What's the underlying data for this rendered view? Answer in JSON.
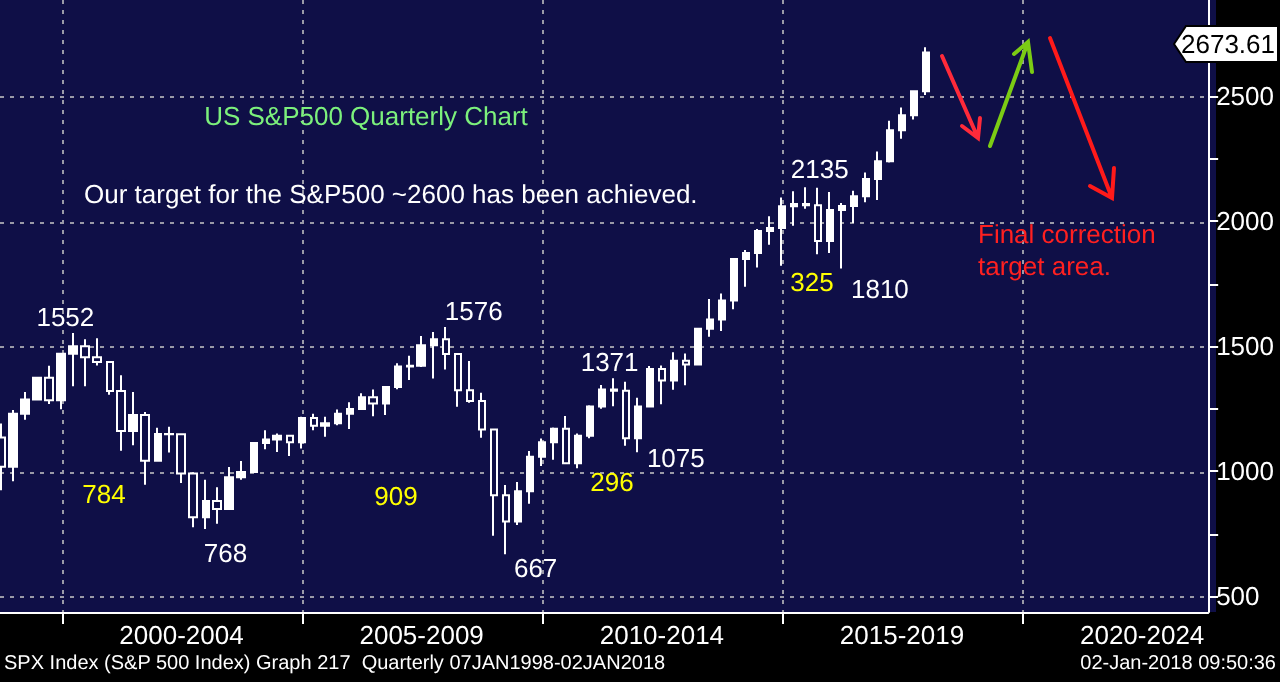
{
  "chart_data": {
    "type": "candlestick",
    "color": "#ffffff",
    "grid": true,
    "x": [
      "1998-09-30",
      "1998-12-31",
      "1999-03-31",
      "1999-06-30",
      "1999-09-30",
      "1999-12-31",
      "2000-03-31",
      "2000-06-30",
      "2000-09-30",
      "2000-12-31",
      "2001-03-31",
      "2001-06-30",
      "2001-09-30",
      "2001-12-31",
      "2002-03-31",
      "2002-06-30",
      "2002-09-30",
      "2002-12-31",
      "2003-03-31",
      "2003-06-30",
      "2003-09-30",
      "2003-12-31",
      "2004-03-31",
      "2004-06-30",
      "2004-09-30",
      "2004-12-31",
      "2005-03-31",
      "2005-06-30",
      "2005-09-30",
      "2005-12-31",
      "2006-03-31",
      "2006-06-30",
      "2006-09-30",
      "2006-12-31",
      "2007-03-31",
      "2007-06-30",
      "2007-09-30",
      "2007-12-31",
      "2008-03-31",
      "2008-06-30",
      "2008-09-30",
      "2008-12-31",
      "2009-03-31",
      "2009-06-30",
      "2009-09-30",
      "2009-12-31",
      "2010-03-31",
      "2010-06-30",
      "2010-09-30",
      "2010-12-31",
      "2011-03-31",
      "2011-06-30",
      "2011-09-30",
      "2011-12-31",
      "2012-03-31",
      "2012-06-30",
      "2012-09-30",
      "2012-12-31",
      "2013-03-31",
      "2013-06-30",
      "2013-09-30",
      "2013-12-31",
      "2014-03-31",
      "2014-06-30",
      "2014-09-30",
      "2014-12-31",
      "2015-03-31",
      "2015-06-30",
      "2015-09-30",
      "2015-12-31",
      "2016-03-31",
      "2016-06-30",
      "2016-09-30",
      "2016-12-31",
      "2017-03-31",
      "2017-06-30",
      "2017-09-30",
      "2017-12-31"
    ],
    "ohlc": [
      [
        1134,
        1190,
        923,
        1017
      ],
      [
        1017,
        1244,
        959,
        1229
      ],
      [
        1229,
        1316,
        1205,
        1286
      ],
      [
        1286,
        1373,
        1282,
        1373
      ],
      [
        1373,
        1421,
        1268,
        1283
      ],
      [
        1283,
        1473,
        1247,
        1469
      ],
      [
        1469,
        1552,
        1339,
        1499
      ],
      [
        1499,
        1527,
        1339,
        1455
      ],
      [
        1455,
        1531,
        1422,
        1436
      ],
      [
        1436,
        1437,
        1305,
        1320
      ],
      [
        1320,
        1383,
        1081,
        1160
      ],
      [
        1160,
        1316,
        1103,
        1224
      ],
      [
        1224,
        1236,
        945,
        1041
      ],
      [
        1041,
        1173,
        1041,
        1148
      ],
      [
        1148,
        1177,
        1074,
        1147
      ],
      [
        1147,
        1147,
        952,
        990
      ],
      [
        990,
        995,
        775,
        815
      ],
      [
        815,
        965,
        768,
        880
      ],
      [
        880,
        935,
        789,
        848
      ],
      [
        848,
        1016,
        847,
        975
      ],
      [
        975,
        1040,
        965,
        996
      ],
      [
        996,
        1112,
        996,
        1112
      ],
      [
        1112,
        1163,
        1087,
        1126
      ],
      [
        1126,
        1150,
        1076,
        1141
      ],
      [
        1141,
        1141,
        1060,
        1115
      ],
      [
        1115,
        1217,
        1090,
        1212
      ],
      [
        1212,
        1229,
        1163,
        1181
      ],
      [
        1181,
        1217,
        1137,
        1191
      ],
      [
        1191,
        1246,
        1183,
        1229
      ],
      [
        1229,
        1275,
        1168,
        1248
      ],
      [
        1248,
        1311,
        1245,
        1295
      ],
      [
        1295,
        1326,
        1219,
        1270
      ],
      [
        1270,
        1340,
        1224,
        1336
      ],
      [
        1336,
        1431,
        1327,
        1418
      ],
      [
        1418,
        1461,
        1364,
        1421
      ],
      [
        1421,
        1540,
        1416,
        1503
      ],
      [
        1503,
        1556,
        1370,
        1527
      ],
      [
        1527,
        1576,
        1406,
        1468
      ],
      [
        1468,
        1471,
        1257,
        1323
      ],
      [
        1323,
        1440,
        1273,
        1280
      ],
      [
        1280,
        1313,
        1133,
        1166
      ],
      [
        1166,
        1167,
        741,
        903
      ],
      [
        903,
        944,
        667,
        798
      ],
      [
        798,
        956,
        784,
        919
      ],
      [
        919,
        1080,
        869,
        1057
      ],
      [
        1057,
        1130,
        1020,
        1115
      ],
      [
        1115,
        1174,
        1045,
        1169
      ],
      [
        1169,
        1220,
        1029,
        1031
      ],
      [
        1031,
        1150,
        1011,
        1141
      ],
      [
        1141,
        1263,
        1131,
        1258
      ],
      [
        1258,
        1344,
        1249,
        1326
      ],
      [
        1326,
        1371,
        1259,
        1321
      ],
      [
        1321,
        1357,
        1101,
        1131
      ],
      [
        1131,
        1293,
        1075,
        1258
      ],
      [
        1258,
        1420,
        1258,
        1408
      ],
      [
        1408,
        1422,
        1267,
        1362
      ],
      [
        1362,
        1475,
        1325,
        1441
      ],
      [
        1441,
        1470,
        1343,
        1426
      ],
      [
        1426,
        1570,
        1426,
        1569
      ],
      [
        1569,
        1688,
        1537,
        1606
      ],
      [
        1606,
        1710,
        1560,
        1682
      ],
      [
        1682,
        1850,
        1647,
        1848
      ],
      [
        1848,
        1884,
        1737,
        1872
      ],
      [
        1872,
        1968,
        1814,
        1960
      ],
      [
        1960,
        2019,
        1905,
        1972
      ],
      [
        1972,
        2094,
        1821,
        2059
      ],
      [
        2059,
        2119,
        1981,
        2068
      ],
      [
        2068,
        2135,
        2049,
        2063
      ],
      [
        2063,
        2133,
        1867,
        1920
      ],
      [
        1920,
        2116,
        1872,
        2044
      ],
      [
        2044,
        2072,
        1810,
        2060
      ],
      [
        2060,
        2121,
        1992,
        2099
      ],
      [
        2099,
        2194,
        2075,
        2168
      ],
      [
        2168,
        2278,
        2084,
        2239
      ],
      [
        2239,
        2401,
        2234,
        2363
      ],
      [
        2363,
        2454,
        2329,
        2423
      ],
      [
        2423,
        2520,
        2406,
        2519
      ],
      [
        2519,
        2695,
        2504,
        2674
      ]
    ],
    "xlim": [
      "1998-09-20",
      "2023-11-15"
    ],
    "xticks": [
      {
        "value": "2000-01-01",
        "label": null
      },
      {
        "value": "2002-07-01",
        "label": "2000-2004"
      },
      {
        "value": "2005-01-01",
        "label": null
      },
      {
        "value": "2007-07-01",
        "label": "2005-2009"
      },
      {
        "value": "2010-01-01",
        "label": null
      },
      {
        "value": "2012-07-01",
        "label": "2010-2014"
      },
      {
        "value": "2015-01-01",
        "label": null
      },
      {
        "value": "2017-07-01",
        "label": "2015-2019"
      },
      {
        "value": "2020-01-01",
        "label": null
      },
      {
        "value": "2022-07-01",
        "label": "2020-2024"
      }
    ],
    "ylim": [
      436,
      2884
    ],
    "yticks": [
      500,
      {
        "value": 750,
        "label": null
      },
      1000,
      {
        "value": 1250,
        "label": null
      },
      1500,
      {
        "value": 1750,
        "label": null
      },
      2000,
      {
        "value": 2250,
        "label": null
      },
      2500,
      {
        "value": 2750,
        "label": null
      }
    ],
    "annotations": [
      "US S&P500 Quarterly Chart",
      "Our target for the S&P500 ~2600 has been achieved.",
      "784",
      "909",
      "296",
      "325",
      "Final correction target area.",
      "SPX Index (S&P 500 Index) Graph 217  Quarterly 07JAN1998-02JAN2018",
      "02-Jan-2018 09:50:36",
      {
        "text": "1552",
        "x": "2000-03-31",
        "y": 1552
      },
      {
        "text": "768",
        "x": "2002-12-31",
        "y": 768
      },
      {
        "text": "1576",
        "x": "2007-12-31",
        "y": 1576
      },
      {
        "text": "667",
        "x": "2009-03-31",
        "y": 667
      },
      {
        "text": "1371",
        "x": "2011-06-30",
        "y": 1371
      },
      {
        "text": "1075",
        "x": "2011-12-31",
        "y": 1075
      },
      {
        "text": "2135",
        "x": "2015-06-30",
        "y": 2135
      },
      {
        "text": "1810",
        "x": "2016-03-31",
        "y": 1810
      },
      "2673.61"
    ]
  }
}
